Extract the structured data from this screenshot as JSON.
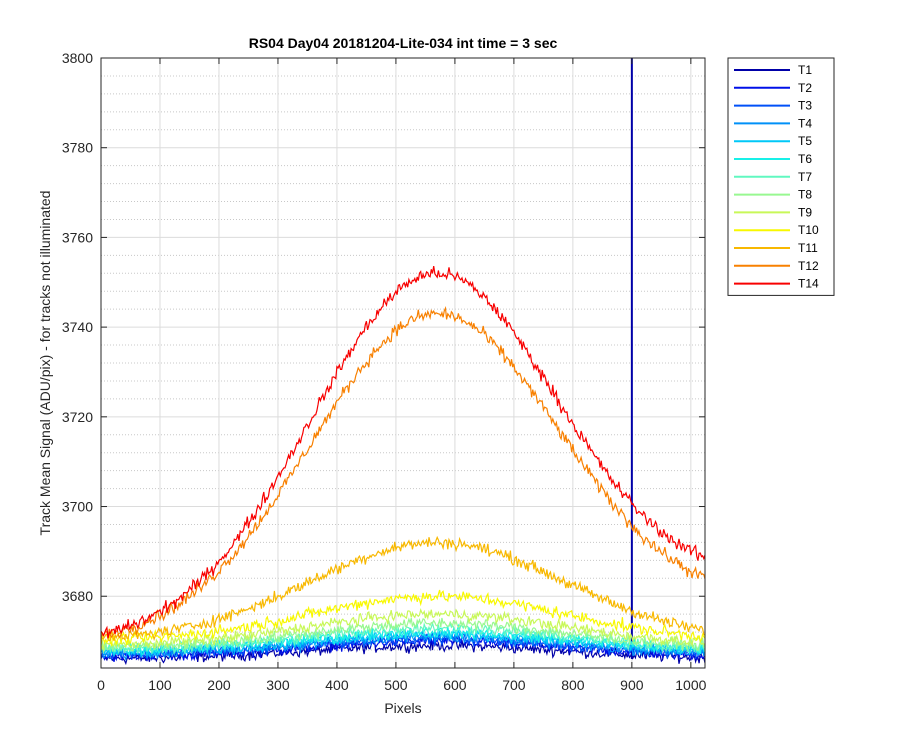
{
  "chart_data": {
    "type": "line",
    "title": "RS04 Day04 20181204-Lite-034 int time = 3 sec",
    "xlabel": "Pixels",
    "ylabel": "Track Mean Signal (ADU/pix) - for tracks not illuminated",
    "xlim": [
      0,
      1024
    ],
    "ylim": [
      3664,
      3800
    ],
    "x_ticks": [
      "0",
      "100",
      "200",
      "300",
      "400",
      "500",
      "600",
      "700",
      "800",
      "900",
      "1000"
    ],
    "y_ticks": [
      "3680",
      "3700",
      "3720",
      "3740",
      "3760",
      "3780",
      "3800"
    ],
    "grid": "major and minor",
    "legend_position": "outside-right",
    "series": [
      {
        "name": "T1",
        "color": "#0000a8",
        "peak": 3669,
        "base": 3666,
        "noise": 1.2,
        "spike_at": 900
      },
      {
        "name": "T2",
        "color": "#0010e8",
        "peak": 3670,
        "base": 3666.5,
        "noise": 1.2
      },
      {
        "name": "T3",
        "color": "#0050f8",
        "peak": 3670.5,
        "base": 3667,
        "noise": 1.2
      },
      {
        "name": "T4",
        "color": "#0090f8",
        "peak": 3671,
        "base": 3667,
        "noise": 1.2
      },
      {
        "name": "T5",
        "color": "#00c8f8",
        "peak": 3671.5,
        "base": 3667.5,
        "noise": 1.2
      },
      {
        "name": "T6",
        "color": "#18f0e8",
        "peak": 3672,
        "base": 3668,
        "noise": 1.2
      },
      {
        "name": "T7",
        "color": "#60f8c0",
        "peak": 3673,
        "base": 3668,
        "noise": 1.2
      },
      {
        "name": "T8",
        "color": "#98f890",
        "peak": 3674,
        "base": 3668.5,
        "noise": 1.2
      },
      {
        "name": "T9",
        "color": "#c8f858",
        "peak": 3676,
        "base": 3669,
        "noise": 1.2
      },
      {
        "name": "T10",
        "color": "#f8f800",
        "peak": 3680,
        "base": 3670,
        "noise": 1.3
      },
      {
        "name": "T11",
        "color": "#f8b800",
        "peak": 3692,
        "base": 3670,
        "noise": 1.3
      },
      {
        "name": "T12",
        "color": "#f88000",
        "peak": 3743,
        "base": 3669,
        "end": 3685,
        "noise": 1.4
      },
      {
        "name": "T14",
        "color": "#f80000",
        "peak": 3752,
        "base": 3669,
        "end": 3690,
        "noise": 1.4
      }
    ]
  }
}
